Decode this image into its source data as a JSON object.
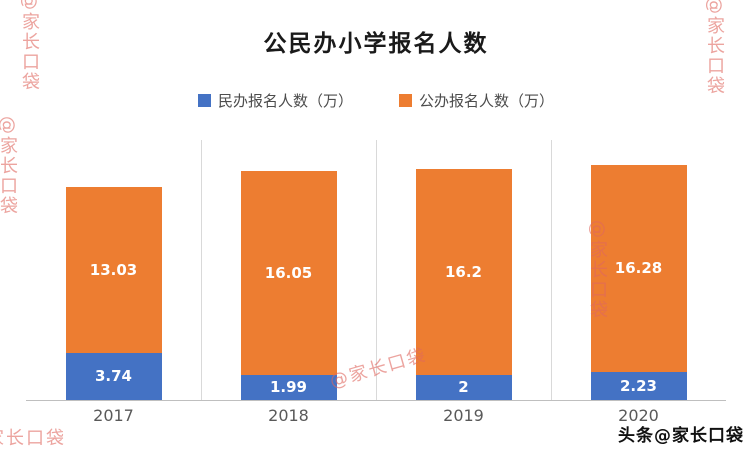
{
  "chart_data": {
    "type": "bar",
    "stacked": true,
    "title": "公民办小学报名人数",
    "categories": [
      "2017",
      "2018",
      "2019",
      "2020"
    ],
    "series": [
      {
        "name": "民办报名人数（万）",
        "color": "#4472c4",
        "values": [
          3.74,
          1.99,
          2,
          2.23
        ],
        "labels": [
          "3.74",
          "1.99",
          "2",
          "2.23"
        ]
      },
      {
        "name": "公办报名人数（万）",
        "color": "#ed7d31",
        "values": [
          13.03,
          16.05,
          16.2,
          16.28
        ],
        "labels": [
          "13.03",
          "16.05",
          "16.2",
          "16.28"
        ]
      }
    ],
    "xlabel": "",
    "ylabel": "",
    "ylim": [
      0,
      18.6
    ],
    "legend_position": "top",
    "grid": "vertical-category-separators"
  },
  "legend": [
    {
      "label": "民办报名人数（万）",
      "color": "#4472c4"
    },
    {
      "label": "公办报名人数（万）",
      "color": "#ed7d31"
    }
  ],
  "watermarks": {
    "repeated_text": "@家长口袋",
    "color": "#e0685f",
    "bottom_right_text": "头条@家长口袋"
  }
}
